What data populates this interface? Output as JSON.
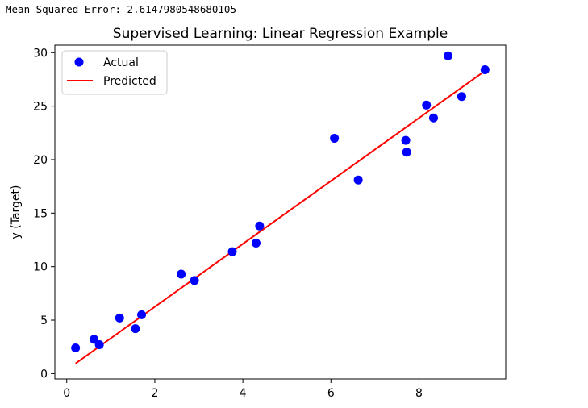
{
  "output": {
    "mse_text": "Mean Squared Error: 2.6147980548680105"
  },
  "chart_data": {
    "type": "scatter",
    "title": "Supervised Learning: Linear Regression Example",
    "xlabel": "",
    "ylabel": "y (Target)",
    "xlim": [
      -0.27,
      9.97
    ],
    "ylim": [
      -0.5,
      30.7
    ],
    "xticks": [
      0,
      2,
      4,
      6,
      8
    ],
    "yticks": [
      0,
      5,
      10,
      15,
      20,
      25,
      30
    ],
    "grid": false,
    "legend_position": "upper-left",
    "series": [
      {
        "name": "Actual",
        "kind": "scatter",
        "color": "#0000ff",
        "points": [
          [
            0.2,
            2.4
          ],
          [
            0.62,
            3.2
          ],
          [
            0.74,
            2.7
          ],
          [
            1.2,
            5.2
          ],
          [
            1.56,
            4.2
          ],
          [
            1.7,
            5.5
          ],
          [
            2.6,
            9.3
          ],
          [
            2.9,
            8.7
          ],
          [
            3.76,
            11.4
          ],
          [
            4.3,
            12.2
          ],
          [
            4.38,
            13.8
          ],
          [
            6.08,
            22.0
          ],
          [
            6.62,
            18.1
          ],
          [
            7.7,
            21.8
          ],
          [
            7.72,
            20.7
          ],
          [
            8.17,
            25.1
          ],
          [
            8.33,
            23.9
          ],
          [
            8.66,
            29.7
          ],
          [
            8.97,
            25.9
          ],
          [
            9.5,
            28.4
          ]
        ]
      },
      {
        "name": "Predicted",
        "kind": "line",
        "color": "#ff0000",
        "points": [
          [
            0.2,
            0.95
          ],
          [
            9.5,
            28.3
          ]
        ]
      }
    ]
  }
}
